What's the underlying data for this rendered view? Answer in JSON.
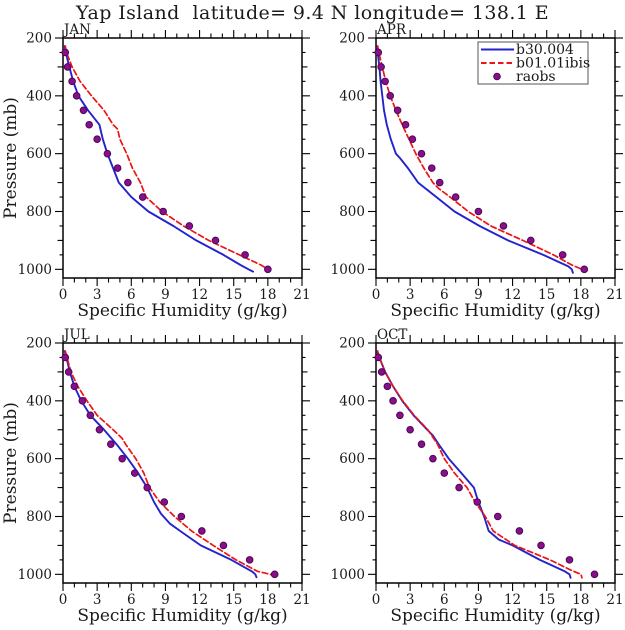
{
  "title": "Yap Island  latitude= 9.4 N longitude= 138.1 E",
  "axes": {
    "xlabel": "Specific Humidity (g/kg)",
    "ylabel": "Pressure (mb)",
    "x_major_ticks": [
      0,
      3,
      6,
      9,
      12,
      15,
      18,
      21
    ],
    "x_minor_step": 1,
    "y_label_ticks": [
      200,
      400,
      600,
      800,
      1000
    ],
    "y_minor_step": 50,
    "xlim": [
      0,
      21
    ],
    "pressure_top": 200,
    "pressure_bottom": 1030,
    "y_inverted": true,
    "grid": false
  },
  "legend": {
    "position": "top-right-of-APR-panel",
    "entries": [
      {
        "label": "b30.004",
        "marker": "solid-line",
        "color": "#2323cd"
      },
      {
        "label": "b01.01ibis",
        "marker": "dashed-line",
        "color": "#ee1414"
      },
      {
        "label": "raobs",
        "marker": "dot",
        "color": "#8b0d8f"
      }
    ]
  },
  "styles": {
    "model1_color": "#2323cd",
    "model2_color": "#ee1414",
    "obs_fill": "#8b0d8f",
    "obs_edge": "#4a0a50",
    "axis_color": "#000000",
    "legend_border": "#555555"
  },
  "chart_data": {
    "type": "line",
    "x_units": "g/kg",
    "y_units": "mb",
    "panels": [
      {
        "label": "JAN",
        "series": [
          {
            "name": "b30.004",
            "style": "solid",
            "pressure": [
              228,
              250,
              300,
              350,
              400,
              450,
              500,
              550,
              600,
              650,
              700,
              750,
              800,
              850,
              900,
              950,
              985,
              1000,
              1008
            ],
            "humidity": [
              0.15,
              0.25,
              0.55,
              0.9,
              1.35,
              2.2,
              3.2,
              3.5,
              3.9,
              4.4,
              4.9,
              6.0,
              7.5,
              9.7,
              11.7,
              14.1,
              15.6,
              16.3,
              16.7
            ]
          },
          {
            "name": "b01.01ibis",
            "style": "dashed",
            "pressure": [
              228,
              250,
              300,
              350,
              400,
              450,
              500,
              515,
              550,
              600,
              650,
              700,
              750,
              800,
              850,
              900,
              950,
              985,
              1000,
              1006
            ],
            "humidity": [
              0.2,
              0.3,
              0.8,
              1.5,
              2.5,
              3.6,
              4.4,
              4.8,
              5.0,
              5.6,
              6.1,
              6.8,
              7.3,
              8.7,
              10.6,
              12.8,
              15.5,
              17.4,
              18.0,
              18.2
            ]
          },
          {
            "name": "raobs",
            "style": "dots",
            "pressure": [
              250,
              300,
              350,
              400,
              450,
              500,
              550,
              600,
              650,
              700,
              750,
              800,
              850,
              900,
              950,
              1000
            ],
            "humidity": [
              0.2,
              0.4,
              0.8,
              1.2,
              1.8,
              2.3,
              3.0,
              3.9,
              4.8,
              5.7,
              7.0,
              8.8,
              11.1,
              13.4,
              16.0,
              18.0
            ]
          }
        ]
      },
      {
        "label": "APR",
        "series": [
          {
            "name": "b30.004",
            "style": "solid",
            "pressure": [
              228,
              250,
              300,
              350,
              400,
              450,
              500,
              550,
              600,
              615,
              650,
              700,
              750,
              800,
              850,
              900,
              950,
              990,
              1000,
              1012
            ],
            "humidity": [
              0.1,
              0.15,
              0.3,
              0.4,
              0.55,
              0.7,
              0.95,
              1.3,
              1.75,
              2.1,
              2.8,
              3.7,
              5.3,
              6.9,
              9.1,
              11.6,
              14.7,
              16.9,
              17.2,
              17.3
            ]
          },
          {
            "name": "b01.01ibis",
            "style": "dashed",
            "pressure": [
              228,
              250,
              300,
              350,
              400,
              450,
              500,
              550,
              600,
              650,
              700,
              720,
              750,
              800,
              850,
              900,
              950,
              985,
              1000,
              1008
            ],
            "humidity": [
              0.15,
              0.25,
              0.55,
              0.85,
              1.25,
              1.75,
              2.3,
              2.9,
              3.5,
              4.2,
              5.0,
              5.5,
              6.5,
              8.1,
              10.1,
              12.9,
              15.6,
              17.2,
              18.1,
              18.2
            ]
          },
          {
            "name": "raobs",
            "style": "dots",
            "pressure": [
              250,
              300,
              350,
              400,
              450,
              500,
              550,
              600,
              650,
              700,
              750,
              800,
              850,
              900,
              950,
              1000
            ],
            "humidity": [
              0.2,
              0.45,
              0.8,
              1.25,
              1.9,
              2.6,
              3.2,
              4.0,
              4.9,
              5.6,
              7.0,
              9.0,
              11.2,
              13.6,
              16.4,
              18.3
            ]
          }
        ]
      },
      {
        "label": "JUL",
        "series": [
          {
            "name": "b30.004",
            "style": "solid",
            "pressure": [
              228,
              250,
              300,
              350,
              400,
              450,
              500,
              550,
              600,
              650,
              700,
              750,
              790,
              825,
              850,
              900,
              950,
              990,
              1000,
              1010
            ],
            "humidity": [
              0.15,
              0.3,
              0.6,
              1.0,
              1.6,
              2.4,
              3.6,
              4.7,
              5.7,
              6.6,
              7.4,
              8.0,
              8.6,
              9.4,
              10.3,
              12.1,
              14.8,
              16.6,
              16.9,
              17.0
            ]
          },
          {
            "name": "b01.01ibis",
            "style": "dashed",
            "pressure": [
              228,
              250,
              300,
              350,
              400,
              450,
              500,
              530,
              550,
              600,
              650,
              700,
              750,
              800,
              850,
              900,
              950,
              990,
              1000,
              1008
            ],
            "humidity": [
              0.2,
              0.35,
              0.7,
              1.3,
              2.1,
              3.0,
              4.4,
              5.2,
              5.5,
              6.4,
              7.1,
              7.6,
              8.5,
              9.8,
              11.3,
              13.2,
              15.2,
              17.1,
              18.2,
              18.7
            ]
          },
          {
            "name": "raobs",
            "style": "dots",
            "pressure": [
              250,
              300,
              350,
              400,
              450,
              500,
              550,
              600,
              650,
              700,
              750,
              800,
              850,
              900,
              950,
              1000
            ],
            "humidity": [
              0.2,
              0.5,
              1.0,
              1.7,
              2.4,
              3.2,
              4.2,
              5.2,
              6.3,
              7.4,
              8.9,
              10.4,
              12.2,
              14.1,
              16.4,
              18.6
            ]
          }
        ]
      },
      {
        "label": "OCT",
        "series": [
          {
            "name": "b30.004",
            "style": "solid",
            "pressure": [
              228,
              250,
              300,
              350,
              400,
              430,
              450,
              500,
              520,
              550,
              600,
              650,
              700,
              750,
              800,
              850,
              880,
              900,
              950,
              990,
              1000,
              1012
            ],
            "humidity": [
              0.1,
              0.3,
              0.8,
              1.5,
              2.3,
              2.9,
              3.3,
              4.5,
              5.0,
              5.5,
              6.4,
              7.5,
              8.6,
              9.0,
              9.5,
              9.9,
              10.8,
              12.0,
              14.4,
              16.6,
              17.0,
              17.1
            ]
          },
          {
            "name": "b01.01ibis",
            "style": "dashed",
            "pressure": [
              228,
              250,
              300,
              350,
              400,
              450,
              500,
              550,
              600,
              650,
              700,
              750,
              800,
              850,
              900,
              950,
              985,
              1000,
              1012
            ],
            "humidity": [
              0.15,
              0.3,
              0.8,
              1.5,
              2.35,
              3.35,
              4.55,
              5.4,
              6.0,
              6.9,
              8.0,
              8.7,
              9.6,
              10.3,
              12.2,
              15.3,
              17.1,
              18.0,
              18.1
            ]
          },
          {
            "name": "raobs",
            "style": "dots",
            "pressure": [
              250,
              300,
              350,
              400,
              450,
              500,
              550,
              600,
              650,
              700,
              750,
              800,
              850,
              900,
              950,
              1000
            ],
            "humidity": [
              0.2,
              0.5,
              1.0,
              1.5,
              2.1,
              3.0,
              4.0,
              5.0,
              6.0,
              7.3,
              8.9,
              10.7,
              12.6,
              14.5,
              17.0,
              19.2
            ]
          }
        ]
      }
    ]
  }
}
